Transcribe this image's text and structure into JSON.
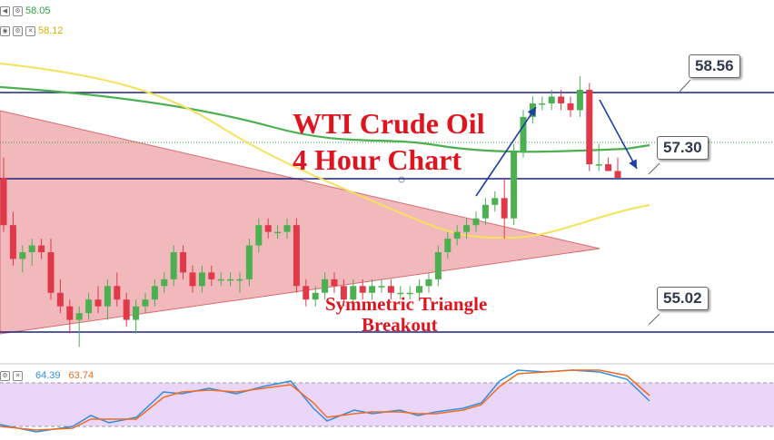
{
  "legend": {
    "ma1_value": "58.05",
    "ma2_value": "58.12",
    "ma1_color": "#2ea043",
    "ma2_color": "#e9c400"
  },
  "annotations": {
    "title_line1": "WTI Crude Oil",
    "title_line2": "4 Hour Chart",
    "pattern_line1": "Symmetric Triangle",
    "pattern_line2": "Breakout",
    "resistance_label": "58.56",
    "current_label": "57.30",
    "support_label": "55.02"
  },
  "oscillator": {
    "k_value": "64.39",
    "d_value": "63.74",
    "k_color": "#2f8fe0",
    "d_color": "#f26b21"
  },
  "colors": {
    "bull": "#4caf50",
    "bear": "#e0394a",
    "level_line": "#1a237e",
    "triangle": "#e88a8f",
    "ma1": "#4caf50",
    "ma2": "#f5e15a",
    "osc_band": "#e3c8f5",
    "title": "#e0141e",
    "arrow": "#1f3fa8"
  },
  "chart_data": {
    "type": "candlestick",
    "title": "WTI Crude Oil 4 Hour Chart",
    "ylim": [
      54.5,
      59.2
    ],
    "levels": [
      58.56,
      57.3,
      55.02
    ],
    "candles": [
      [
        57.3,
        57.6,
        56.5,
        56.6
      ],
      [
        56.6,
        56.8,
        56.0,
        56.1
      ],
      [
        56.1,
        56.3,
        55.9,
        56.2
      ],
      [
        56.2,
        56.4,
        56.0,
        56.3
      ],
      [
        56.3,
        56.4,
        56.1,
        56.2
      ],
      [
        56.2,
        56.4,
        55.5,
        55.6
      ],
      [
        55.6,
        55.8,
        55.3,
        55.4
      ],
      [
        55.4,
        55.5,
        55.0,
        55.2
      ],
      [
        55.2,
        55.4,
        54.8,
        55.3
      ],
      [
        55.3,
        55.6,
        55.2,
        55.5
      ],
      [
        55.5,
        55.7,
        55.3,
        55.4
      ],
      [
        55.4,
        55.8,
        55.2,
        55.7
      ],
      [
        55.7,
        55.9,
        55.4,
        55.5
      ],
      [
        55.5,
        55.6,
        55.1,
        55.2
      ],
      [
        55.2,
        55.5,
        55.0,
        55.4
      ],
      [
        55.4,
        55.6,
        55.3,
        55.5
      ],
      [
        55.5,
        55.8,
        55.4,
        55.7
      ],
      [
        55.7,
        55.9,
        55.6,
        55.8
      ],
      [
        55.8,
        56.3,
        55.7,
        56.2
      ],
      [
        56.2,
        56.3,
        55.8,
        55.9
      ],
      [
        55.9,
        56.0,
        55.6,
        55.7
      ],
      [
        55.7,
        56.0,
        55.6,
        55.9
      ],
      [
        55.9,
        56.0,
        55.7,
        55.8
      ],
      [
        55.8,
        55.9,
        55.7,
        55.8
      ],
      [
        55.8,
        55.9,
        55.7,
        55.8
      ],
      [
        55.8,
        55.9,
        55.6,
        55.8
      ],
      [
        55.8,
        56.4,
        55.7,
        56.3
      ],
      [
        56.3,
        56.7,
        56.2,
        56.6
      ],
      [
        56.6,
        56.7,
        56.4,
        56.5
      ],
      [
        56.5,
        56.6,
        56.4,
        56.5
      ],
      [
        56.5,
        56.7,
        56.4,
        56.6
      ],
      [
        56.6,
        56.7,
        55.6,
        55.7
      ],
      [
        55.7,
        55.8,
        55.4,
        55.5
      ],
      [
        55.5,
        55.7,
        55.4,
        55.6
      ],
      [
        55.6,
        55.9,
        55.5,
        55.8
      ],
      [
        55.8,
        55.9,
        55.6,
        55.7
      ],
      [
        55.7,
        55.8,
        55.4,
        55.5
      ],
      [
        55.5,
        55.8,
        55.4,
        55.7
      ],
      [
        55.7,
        55.8,
        55.5,
        55.6
      ],
      [
        55.6,
        55.8,
        55.5,
        55.7
      ],
      [
        55.7,
        55.8,
        55.6,
        55.7
      ],
      [
        55.7,
        55.8,
        55.5,
        55.6
      ],
      [
        55.6,
        55.7,
        55.5,
        55.6
      ],
      [
        55.6,
        55.7,
        55.5,
        55.6
      ],
      [
        55.6,
        55.8,
        55.5,
        55.7
      ],
      [
        55.7,
        55.9,
        55.6,
        55.8
      ],
      [
        55.8,
        56.3,
        55.7,
        56.2
      ],
      [
        56.2,
        56.5,
        56.1,
        56.4
      ],
      [
        56.4,
        56.6,
        56.3,
        56.5
      ],
      [
        56.5,
        56.7,
        56.4,
        56.6
      ],
      [
        56.6,
        56.8,
        56.5,
        56.7
      ],
      [
        56.7,
        57.0,
        56.6,
        56.9
      ],
      [
        56.9,
        57.1,
        56.8,
        57.0
      ],
      [
        57.0,
        57.3,
        56.4,
        56.7
      ],
      [
        56.7,
        57.8,
        56.6,
        57.7
      ],
      [
        57.7,
        58.3,
        57.6,
        58.2
      ],
      [
        58.2,
        58.5,
        58.1,
        58.4
      ],
      [
        58.4,
        58.5,
        58.3,
        58.4
      ],
      [
        58.4,
        58.6,
        58.3,
        58.5
      ],
      [
        58.5,
        58.6,
        58.3,
        58.4
      ],
      [
        58.4,
        58.5,
        58.2,
        58.3
      ],
      [
        58.3,
        58.8,
        58.2,
        58.6
      ],
      [
        58.6,
        58.7,
        57.4,
        57.5
      ],
      [
        57.5,
        57.8,
        57.4,
        57.5
      ],
      [
        57.5,
        57.6,
        57.4,
        57.4
      ],
      [
        57.4,
        57.6,
        57.3,
        57.3
      ]
    ],
    "ma1": [
      58.05
    ],
    "ma2": [
      58.12
    ],
    "oscillator_k": 64.39,
    "oscillator_d": 63.74
  }
}
